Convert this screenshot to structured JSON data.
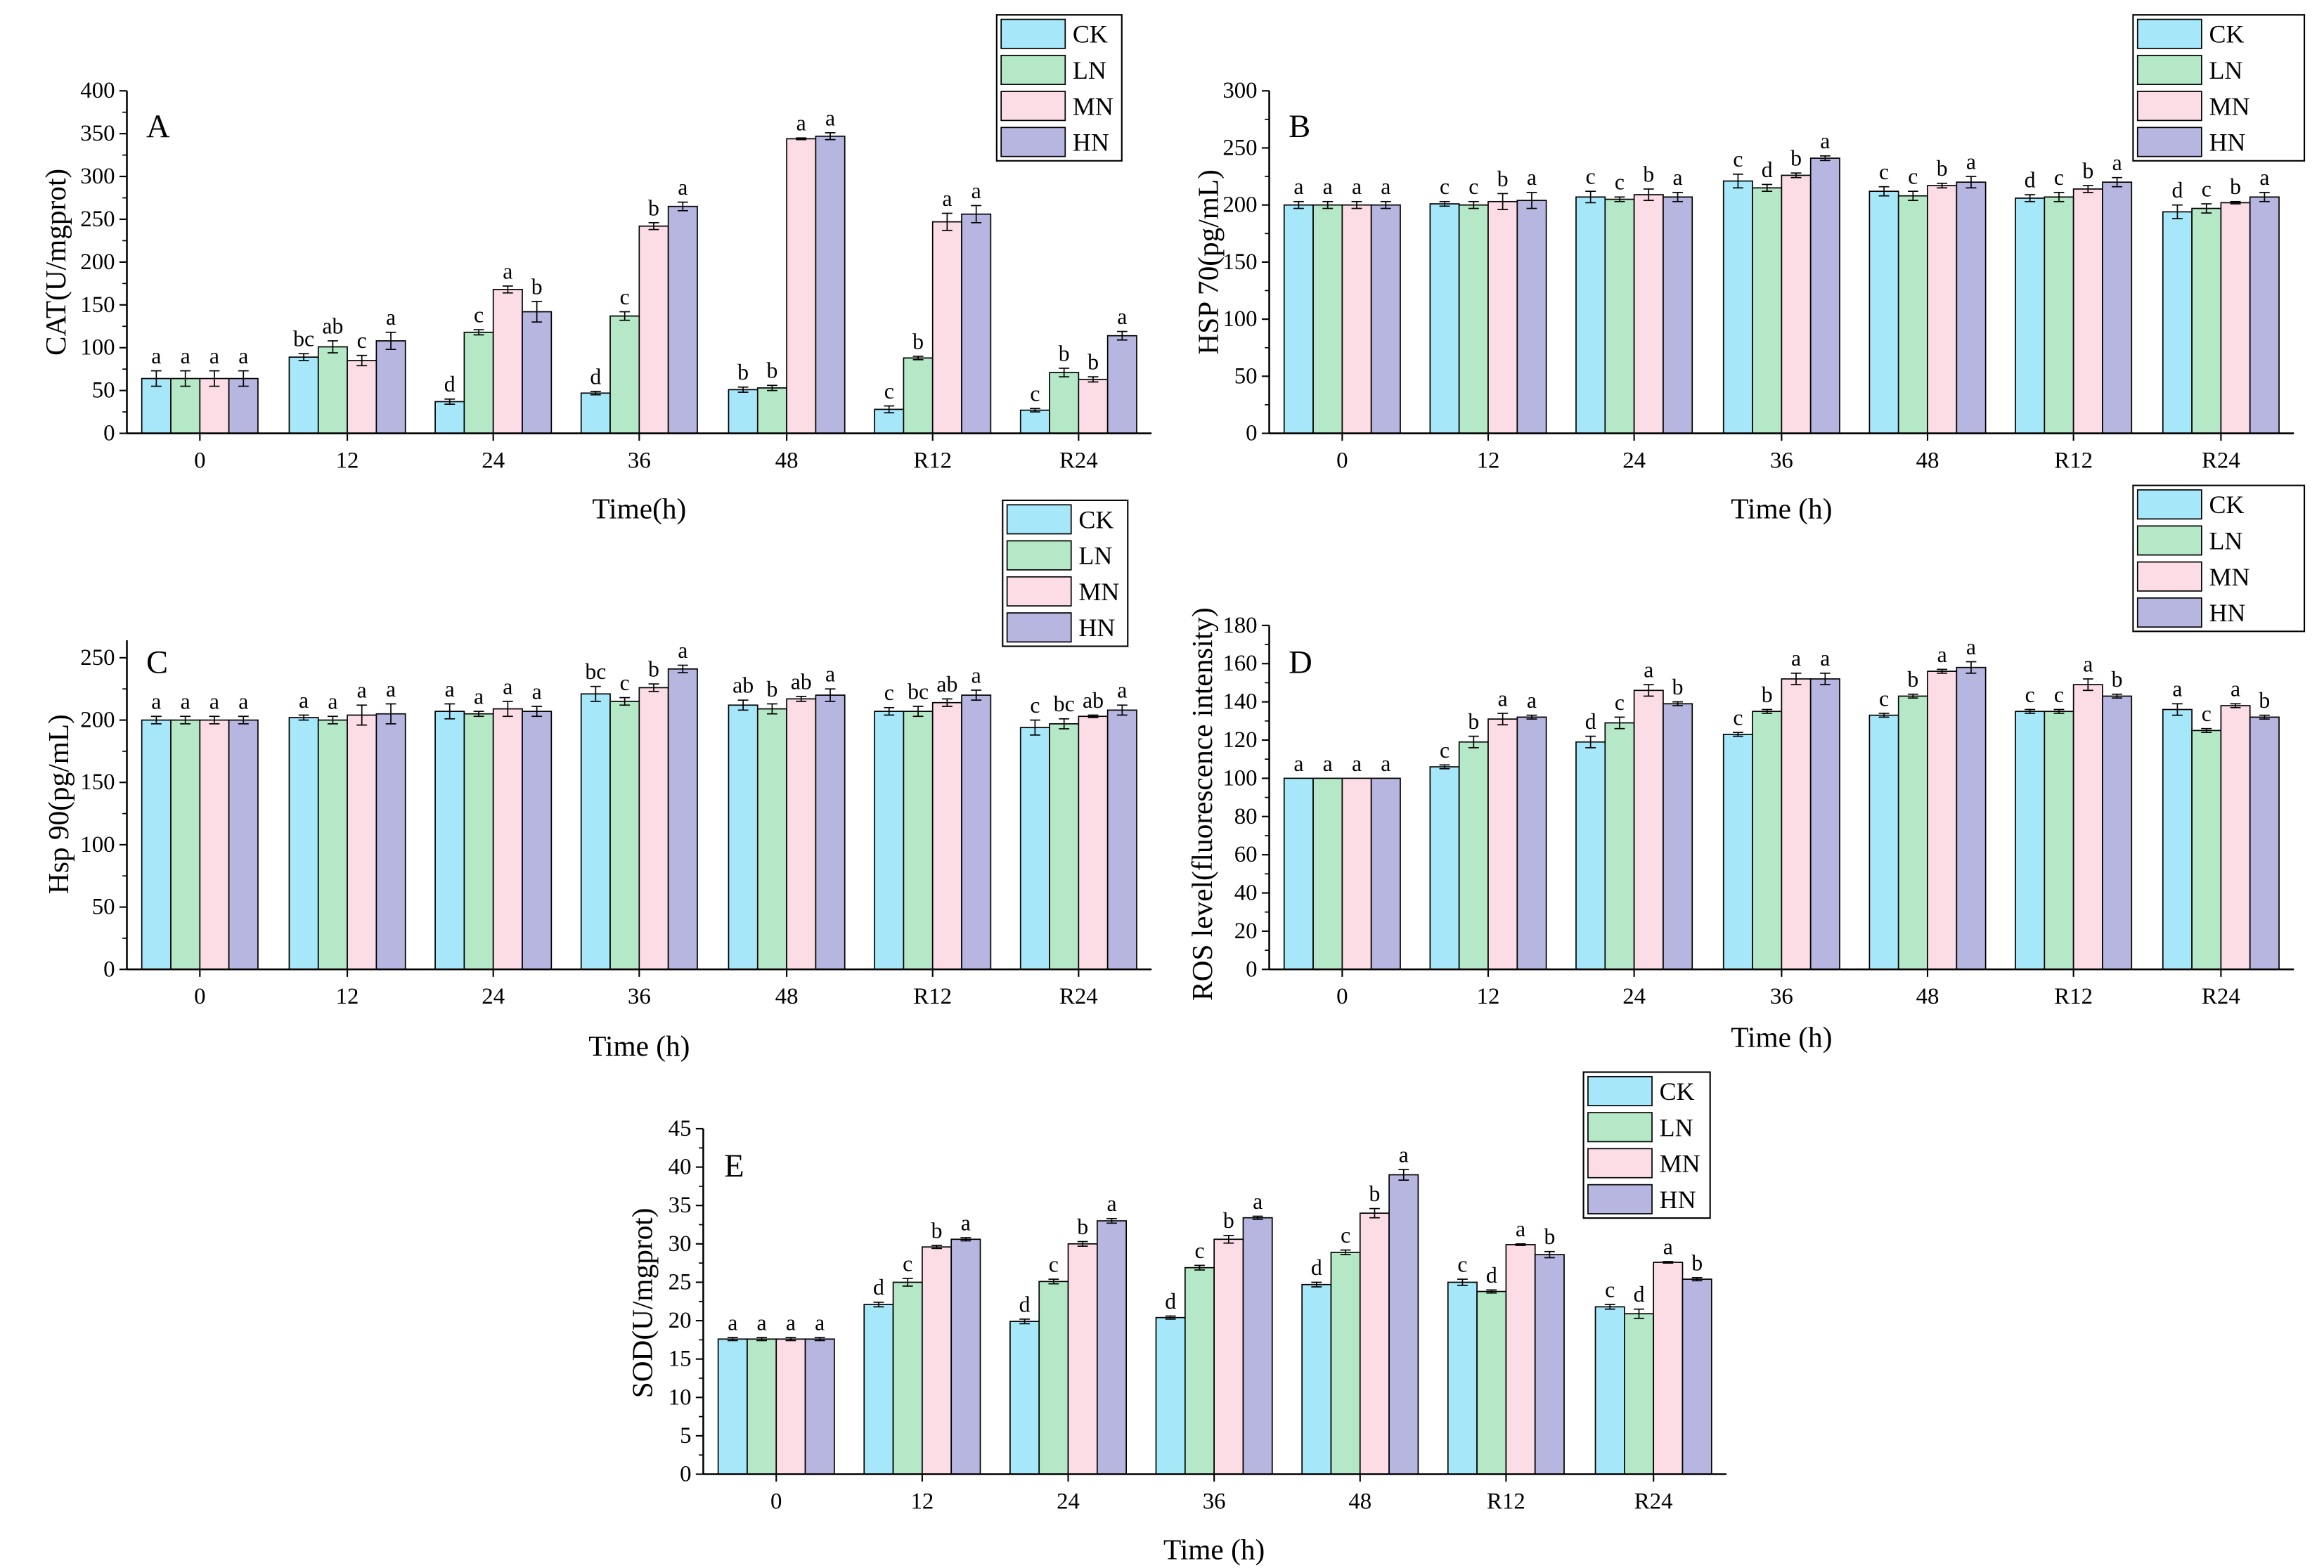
{
  "series_colors": {
    "CK": "#A6E8FA",
    "LN": "#B5E8C6",
    "MN": "#FCDDE5",
    "HN": "#B6B6E0"
  },
  "chart_data": [
    {
      "panel": "A",
      "type": "bar",
      "ylabel": "CAT(U/mgprot)",
      "xlabel": "Time(h)",
      "ylim": [
        0,
        400
      ],
      "yticks": [
        0,
        50,
        100,
        150,
        200,
        250,
        300,
        350,
        400
      ],
      "categories": [
        "0",
        "12",
        "24",
        "36",
        "48",
        "R12",
        "R24"
      ],
      "series": [
        {
          "name": "CK",
          "values": [
            64,
            89,
            37,
            47,
            51,
            28,
            27
          ],
          "errors": [
            9,
            4,
            3,
            2,
            3,
            4,
            2
          ],
          "letters": [
            "a",
            "bc",
            "d",
            "d",
            "b",
            "c",
            "c"
          ]
        },
        {
          "name": "LN",
          "values": [
            64,
            101,
            118,
            137,
            53,
            88,
            71
          ],
          "errors": [
            9,
            7,
            3,
            5,
            3,
            2,
            5
          ],
          "letters": [
            "a",
            "ab",
            "c",
            "c",
            "b",
            "b",
            "b"
          ]
        },
        {
          "name": "MN",
          "values": [
            64,
            85,
            168,
            242,
            344,
            247,
            63
          ],
          "errors": [
            9,
            6,
            4,
            4,
            1,
            10,
            3
          ],
          "letters": [
            "a",
            "c",
            "a",
            "b",
            "a",
            "a",
            "b"
          ]
        },
        {
          "name": "HN",
          "values": [
            64,
            108,
            142,
            265,
            347,
            256,
            114
          ],
          "errors": [
            9,
            10,
            12,
            5,
            4,
            10,
            5
          ],
          "letters": [
            "a",
            "a",
            "b",
            "a",
            "a",
            "a",
            "a"
          ]
        }
      ]
    },
    {
      "panel": "B",
      "type": "bar",
      "ylabel": "HSP 70(pg/mL)",
      "xlabel": "Time (h)",
      "ylim": [
        0,
        300
      ],
      "yticks": [
        0,
        50,
        100,
        150,
        200,
        250,
        300
      ],
      "categories": [
        "0",
        "12",
        "24",
        "36",
        "48",
        "R12",
        "R24"
      ],
      "series": [
        {
          "name": "CK",
          "values": [
            200,
            201,
            207,
            221,
            212,
            206,
            194
          ],
          "errors": [
            3,
            2,
            5,
            6,
            4,
            3,
            6
          ],
          "letters": [
            "a",
            "c",
            "c",
            "c",
            "c",
            "d",
            "d"
          ]
        },
        {
          "name": "LN",
          "values": [
            200,
            200,
            205,
            215,
            208,
            207,
            197
          ],
          "errors": [
            3,
            3,
            2,
            3,
            4,
            4,
            4
          ],
          "letters": [
            "a",
            "c",
            "c",
            "d",
            "c",
            "c",
            "c"
          ]
        },
        {
          "name": "MN",
          "values": [
            200,
            203,
            209,
            226,
            217,
            214,
            202
          ],
          "errors": [
            3,
            7,
            5,
            2,
            2,
            3,
            1
          ],
          "letters": [
            "a",
            "b",
            "b",
            "b",
            "b",
            "b",
            "b"
          ]
        },
        {
          "name": "HN",
          "values": [
            200,
            204,
            207,
            241,
            220,
            220,
            207
          ],
          "errors": [
            3,
            7,
            4,
            2,
            5,
            4,
            4
          ],
          "letters": [
            "a",
            "a",
            "a",
            "a",
            "a",
            "a",
            "a"
          ]
        }
      ]
    },
    {
      "panel": "C",
      "type": "bar",
      "ylabel": "Hsp 90(pg/mL)",
      "xlabel": "Time (h)",
      "ylim": [
        0,
        264
      ],
      "yticks": [
        0,
        50,
        100,
        150,
        200,
        250
      ],
      "categories": [
        "0",
        "12",
        "24",
        "36",
        "48",
        "R12",
        "R24"
      ],
      "series": [
        {
          "name": "CK",
          "values": [
            200,
            202,
            207,
            221,
            212,
            207,
            194
          ],
          "errors": [
            3,
            2,
            6,
            6,
            4,
            3,
            6
          ],
          "letters": [
            "a",
            "a",
            "a",
            "bc",
            "ab",
            "c",
            "c"
          ]
        },
        {
          "name": "LN",
          "values": [
            200,
            200,
            205,
            215,
            209,
            207,
            197
          ],
          "errors": [
            3,
            3,
            2,
            3,
            4,
            4,
            4
          ],
          "letters": [
            "a",
            "a",
            "a",
            "c",
            "b",
            "bc",
            "bc"
          ]
        },
        {
          "name": "MN",
          "values": [
            200,
            204,
            209,
            226,
            217,
            214,
            203
          ],
          "errors": [
            3,
            8,
            6,
            3,
            2,
            3,
            1
          ],
          "letters": [
            "a",
            "a",
            "a",
            "b",
            "ab",
            "ab",
            "ab"
          ]
        },
        {
          "name": "HN",
          "values": [
            200,
            205,
            207,
            241,
            220,
            220,
            208
          ],
          "errors": [
            3,
            8,
            4,
            3,
            5,
            4,
            4
          ],
          "letters": [
            "a",
            "a",
            "a",
            "a",
            "a",
            "a",
            "a"
          ]
        }
      ]
    },
    {
      "panel": "D",
      "type": "bar",
      "ylabel": "ROS level(fluorescence intensity)",
      "xlabel": "Time (h)",
      "ylim": [
        0,
        180
      ],
      "yticks": [
        0,
        20,
        40,
        60,
        80,
        100,
        120,
        140,
        160,
        180
      ],
      "categories": [
        "0",
        "12",
        "24",
        "36",
        "48",
        "R12",
        "R24"
      ],
      "series": [
        {
          "name": "CK",
          "values": [
            100,
            106,
            119,
            123,
            133,
            135,
            136
          ],
          "errors": [
            0,
            1,
            3,
            1,
            1,
            1,
            3
          ],
          "letters": [
            "a",
            "c",
            "d",
            "c",
            "c",
            "c",
            "a"
          ]
        },
        {
          "name": "LN",
          "values": [
            100,
            119,
            129,
            135,
            143,
            135,
            125
          ],
          "errors": [
            0,
            3,
            3,
            1,
            1,
            1,
            1
          ],
          "letters": [
            "a",
            "b",
            "c",
            "b",
            "b",
            "c",
            "c"
          ]
        },
        {
          "name": "MN",
          "values": [
            100,
            131,
            146,
            152,
            156,
            149,
            138
          ],
          "errors": [
            0,
            3,
            3,
            3,
            1,
            3,
            1
          ],
          "letters": [
            "a",
            "a",
            "a",
            "a",
            "a",
            "a",
            "a"
          ]
        },
        {
          "name": "HN",
          "values": [
            100,
            132,
            139,
            152,
            158,
            143,
            132
          ],
          "errors": [
            0,
            1,
            1,
            3,
            3,
            1,
            1
          ],
          "letters": [
            "a",
            "a",
            "b",
            "a",
            "a",
            "b",
            "b"
          ]
        }
      ]
    },
    {
      "panel": "E",
      "type": "bar",
      "ylabel": "SOD(U/mgprot)",
      "xlabel": "Time (h)",
      "ylim": [
        0,
        45
      ],
      "yticks": [
        0,
        5,
        10,
        15,
        20,
        25,
        30,
        35,
        40,
        45
      ],
      "categories": [
        "0",
        "12",
        "24",
        "36",
        "48",
        "R12",
        "R24"
      ],
      "series": [
        {
          "name": "CK",
          "values": [
            17.6,
            22.1,
            19.9,
            20.4,
            24.7,
            25.0,
            21.8
          ],
          "errors": [
            0.2,
            0.3,
            0.3,
            0.2,
            0.3,
            0.4,
            0.3
          ],
          "letters": [
            "a",
            "d",
            "d",
            "d",
            "d",
            "c",
            "c"
          ]
        },
        {
          "name": "LN",
          "values": [
            17.6,
            25.0,
            25.1,
            26.9,
            28.9,
            23.8,
            20.9
          ],
          "errors": [
            0.2,
            0.5,
            0.3,
            0.3,
            0.3,
            0.2,
            0.6
          ],
          "letters": [
            "a",
            "c",
            "c",
            "c",
            "c",
            "d",
            "d"
          ]
        },
        {
          "name": "MN",
          "values": [
            17.6,
            29.6,
            30.0,
            30.6,
            34.0,
            29.9,
            27.6
          ],
          "errors": [
            0.2,
            0.2,
            0.3,
            0.5,
            0.6,
            0.1,
            0.1
          ],
          "letters": [
            "a",
            "b",
            "b",
            "b",
            "b",
            "a",
            "a"
          ]
        },
        {
          "name": "HN",
          "values": [
            17.6,
            30.6,
            33.0,
            33.4,
            39.0,
            28.6,
            25.4
          ],
          "errors": [
            0.2,
            0.2,
            0.3,
            0.2,
            0.7,
            0.4,
            0.2
          ],
          "letters": [
            "a",
            "a",
            "a",
            "a",
            "a",
            "b",
            "b"
          ]
        }
      ]
    }
  ]
}
